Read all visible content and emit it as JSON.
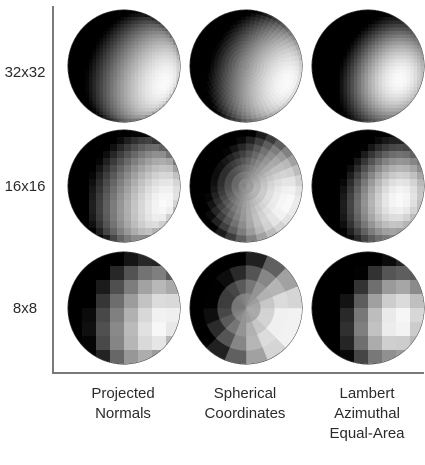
{
  "rows": [
    {
      "label": "32x32",
      "resolution": 32
    },
    {
      "label": "16x16",
      "resolution": 16
    },
    {
      "label": "8x8",
      "resolution": 8
    }
  ],
  "columns": [
    {
      "lines": [
        "Projected",
        "Normals"
      ],
      "method": "projected"
    },
    {
      "lines": [
        "Spherical",
        "Coordinates"
      ],
      "method": "spherical"
    },
    {
      "lines": [
        "Lambert",
        "Azimuthal",
        "Equal-Area"
      ],
      "method": "lambert"
    }
  ],
  "caption": {
    "bold": "",
    "text": ""
  },
  "colors": {
    "axis": "#7a7a7a",
    "dark": "#000000",
    "light": "#ffffff"
  }
}
